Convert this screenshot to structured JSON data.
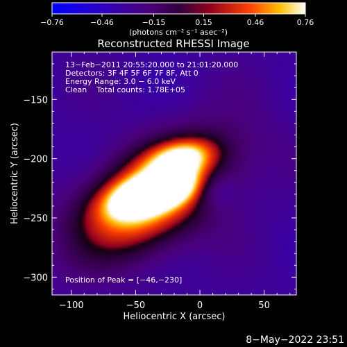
{
  "chart_data": {
    "type": "heatmap",
    "title": "Reconstructed RHESSI Image",
    "xlabel": "Heliocentric X (arcsec)",
    "ylabel": "Heliocentric Y (arcsec)",
    "xlim": [
      -115,
      75
    ],
    "ylim": [
      -315,
      -110
    ],
    "xticks": [
      -100,
      -50,
      0,
      50
    ],
    "yticks": [
      -150,
      -200,
      -250,
      -300
    ],
    "colorbar": {
      "label": "(photons cm⁻² s⁻¹ asec⁻²)",
      "range": [
        -0.76,
        0.76
      ],
      "ticks": [
        "−0.76",
        "−0.46",
        "−0.15",
        "0.15",
        "0.46",
        "0.76"
      ],
      "tick_values": [
        -0.76,
        -0.46,
        -0.15,
        0.15,
        0.46,
        0.76
      ],
      "colormap": "blue-purple-red-yellow-white"
    },
    "annotations": [
      "13−Feb−2011 20:55:20.000 to 21:01:20.000",
      "Detectors: 3F 4F 5F 6F 7F 8F, Att 0",
      "Energy Range: 3.0 − 6.0 keV",
      "Clean    Total counts: 1.78E+05"
    ],
    "peak_label": "Position of Peak = [−46,−230]",
    "peak": [
      -46,
      -230
    ],
    "background_level": 0.15,
    "blobs": [
      {
        "x": -32,
        "y": -230,
        "sx": 48,
        "sy": 26,
        "angle": 35,
        "amp": 0.22
      },
      {
        "x": -42,
        "y": -230,
        "sx": 20,
        "sy": 10,
        "angle": 20,
        "amp": 0.35
      },
      {
        "x": -15,
        "y": -200,
        "sx": 18,
        "sy": 10,
        "angle": 15,
        "amp": 0.28
      },
      {
        "x": -18,
        "y": -224,
        "sx": 14,
        "sy": 9,
        "angle": 20,
        "amp": 0.16
      },
      {
        "x": -50,
        "y": -240,
        "sx": 30,
        "sy": 22,
        "angle": 35,
        "amp": 0.14
      }
    ],
    "hollow": {
      "x": 10,
      "y": -226,
      "sx": 12,
      "sy": 12,
      "amp": -0.22
    }
  },
  "footer": {
    "timestamp": "8−May−2022 23:51"
  }
}
